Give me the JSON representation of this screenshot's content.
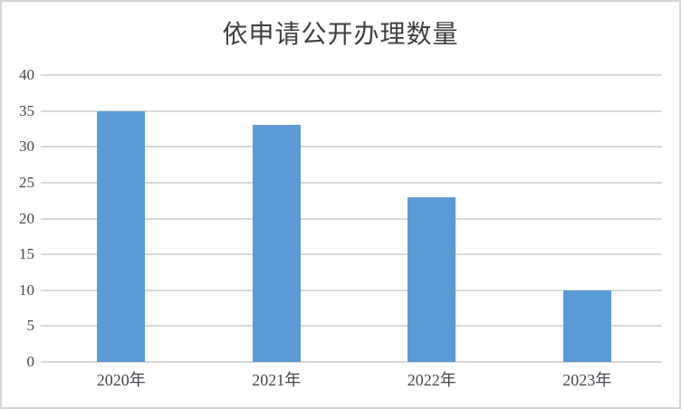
{
  "chart_data": {
    "type": "bar",
    "title": "依申请公开办理数量",
    "categories": [
      "2020年",
      "2021年",
      "2022年",
      "2023年"
    ],
    "values": [
      35,
      33,
      23,
      10
    ],
    "xlabel": "",
    "ylabel": "",
    "ylim": [
      0,
      40
    ],
    "y_ticks": [
      0,
      5,
      10,
      15,
      20,
      25,
      30,
      35,
      40
    ],
    "grid": true,
    "legend": "none",
    "bar_color": "#5B9BD5",
    "gridline_color": "#D9D9D9",
    "title_color": "#3F3F3F",
    "tick_label_color": "#46464E",
    "background_color": "#FFFFFF",
    "border_color": "#D5D5D5"
  }
}
